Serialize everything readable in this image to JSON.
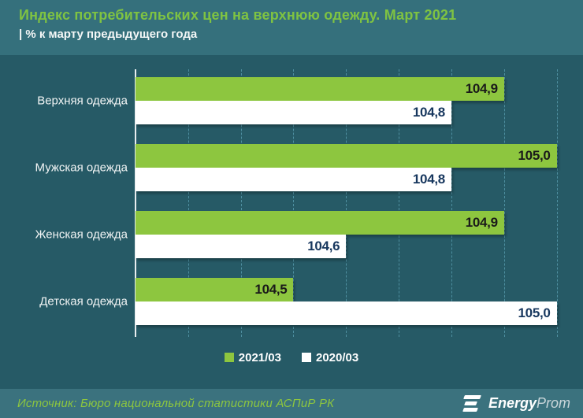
{
  "header": {
    "title": "Индекс потребительских цен на верхнюю одежду. Март 2021",
    "subtitle": "| % к марту предыдущего года"
  },
  "chart_data": {
    "type": "bar",
    "orientation": "horizontal",
    "title": "Индекс потребительских цен на верхнюю одежду. Март 2021",
    "subtitle": "% к марту предыдущего года",
    "categories": [
      "Верхняя одежда",
      "Мужская одежда",
      "Женская одежда",
      "Детская одежда"
    ],
    "series": [
      {
        "name": "2021/03",
        "color": "#8dc63f",
        "label_color": "#1a1a1a",
        "values": [
          104.9,
          105.0,
          104.9,
          104.5
        ],
        "display": [
          "104,9",
          "105,0",
          "104,9",
          "104,5"
        ]
      },
      {
        "name": "2020/03",
        "color": "#ffffff",
        "label_color": "#17375e",
        "values": [
          104.8,
          104.8,
          104.6,
          105.0
        ],
        "display": [
          "104,8",
          "104,8",
          "104,6",
          "105,0"
        ]
      }
    ],
    "xmin": 104.2,
    "xmax": 105.05,
    "gridlines": [
      104.3,
      104.4,
      104.5,
      104.6,
      104.7,
      104.8,
      104.9,
      105.0
    ],
    "grid_style": "dashed",
    "legend_position": "bottom"
  },
  "footer": {
    "source": "Источник: Бюро национальной статистики АСПиР РК",
    "logo_bold": "Energy",
    "logo_light": "Prom"
  },
  "colors": {
    "header_bg": "#35707c",
    "chart_bg": "#265a66",
    "footer_bg": "#3b727e",
    "title_green": "#7fc342",
    "bar_green": "#8dc63f",
    "bar_white": "#ffffff",
    "gridline": "#4e8fa0"
  }
}
